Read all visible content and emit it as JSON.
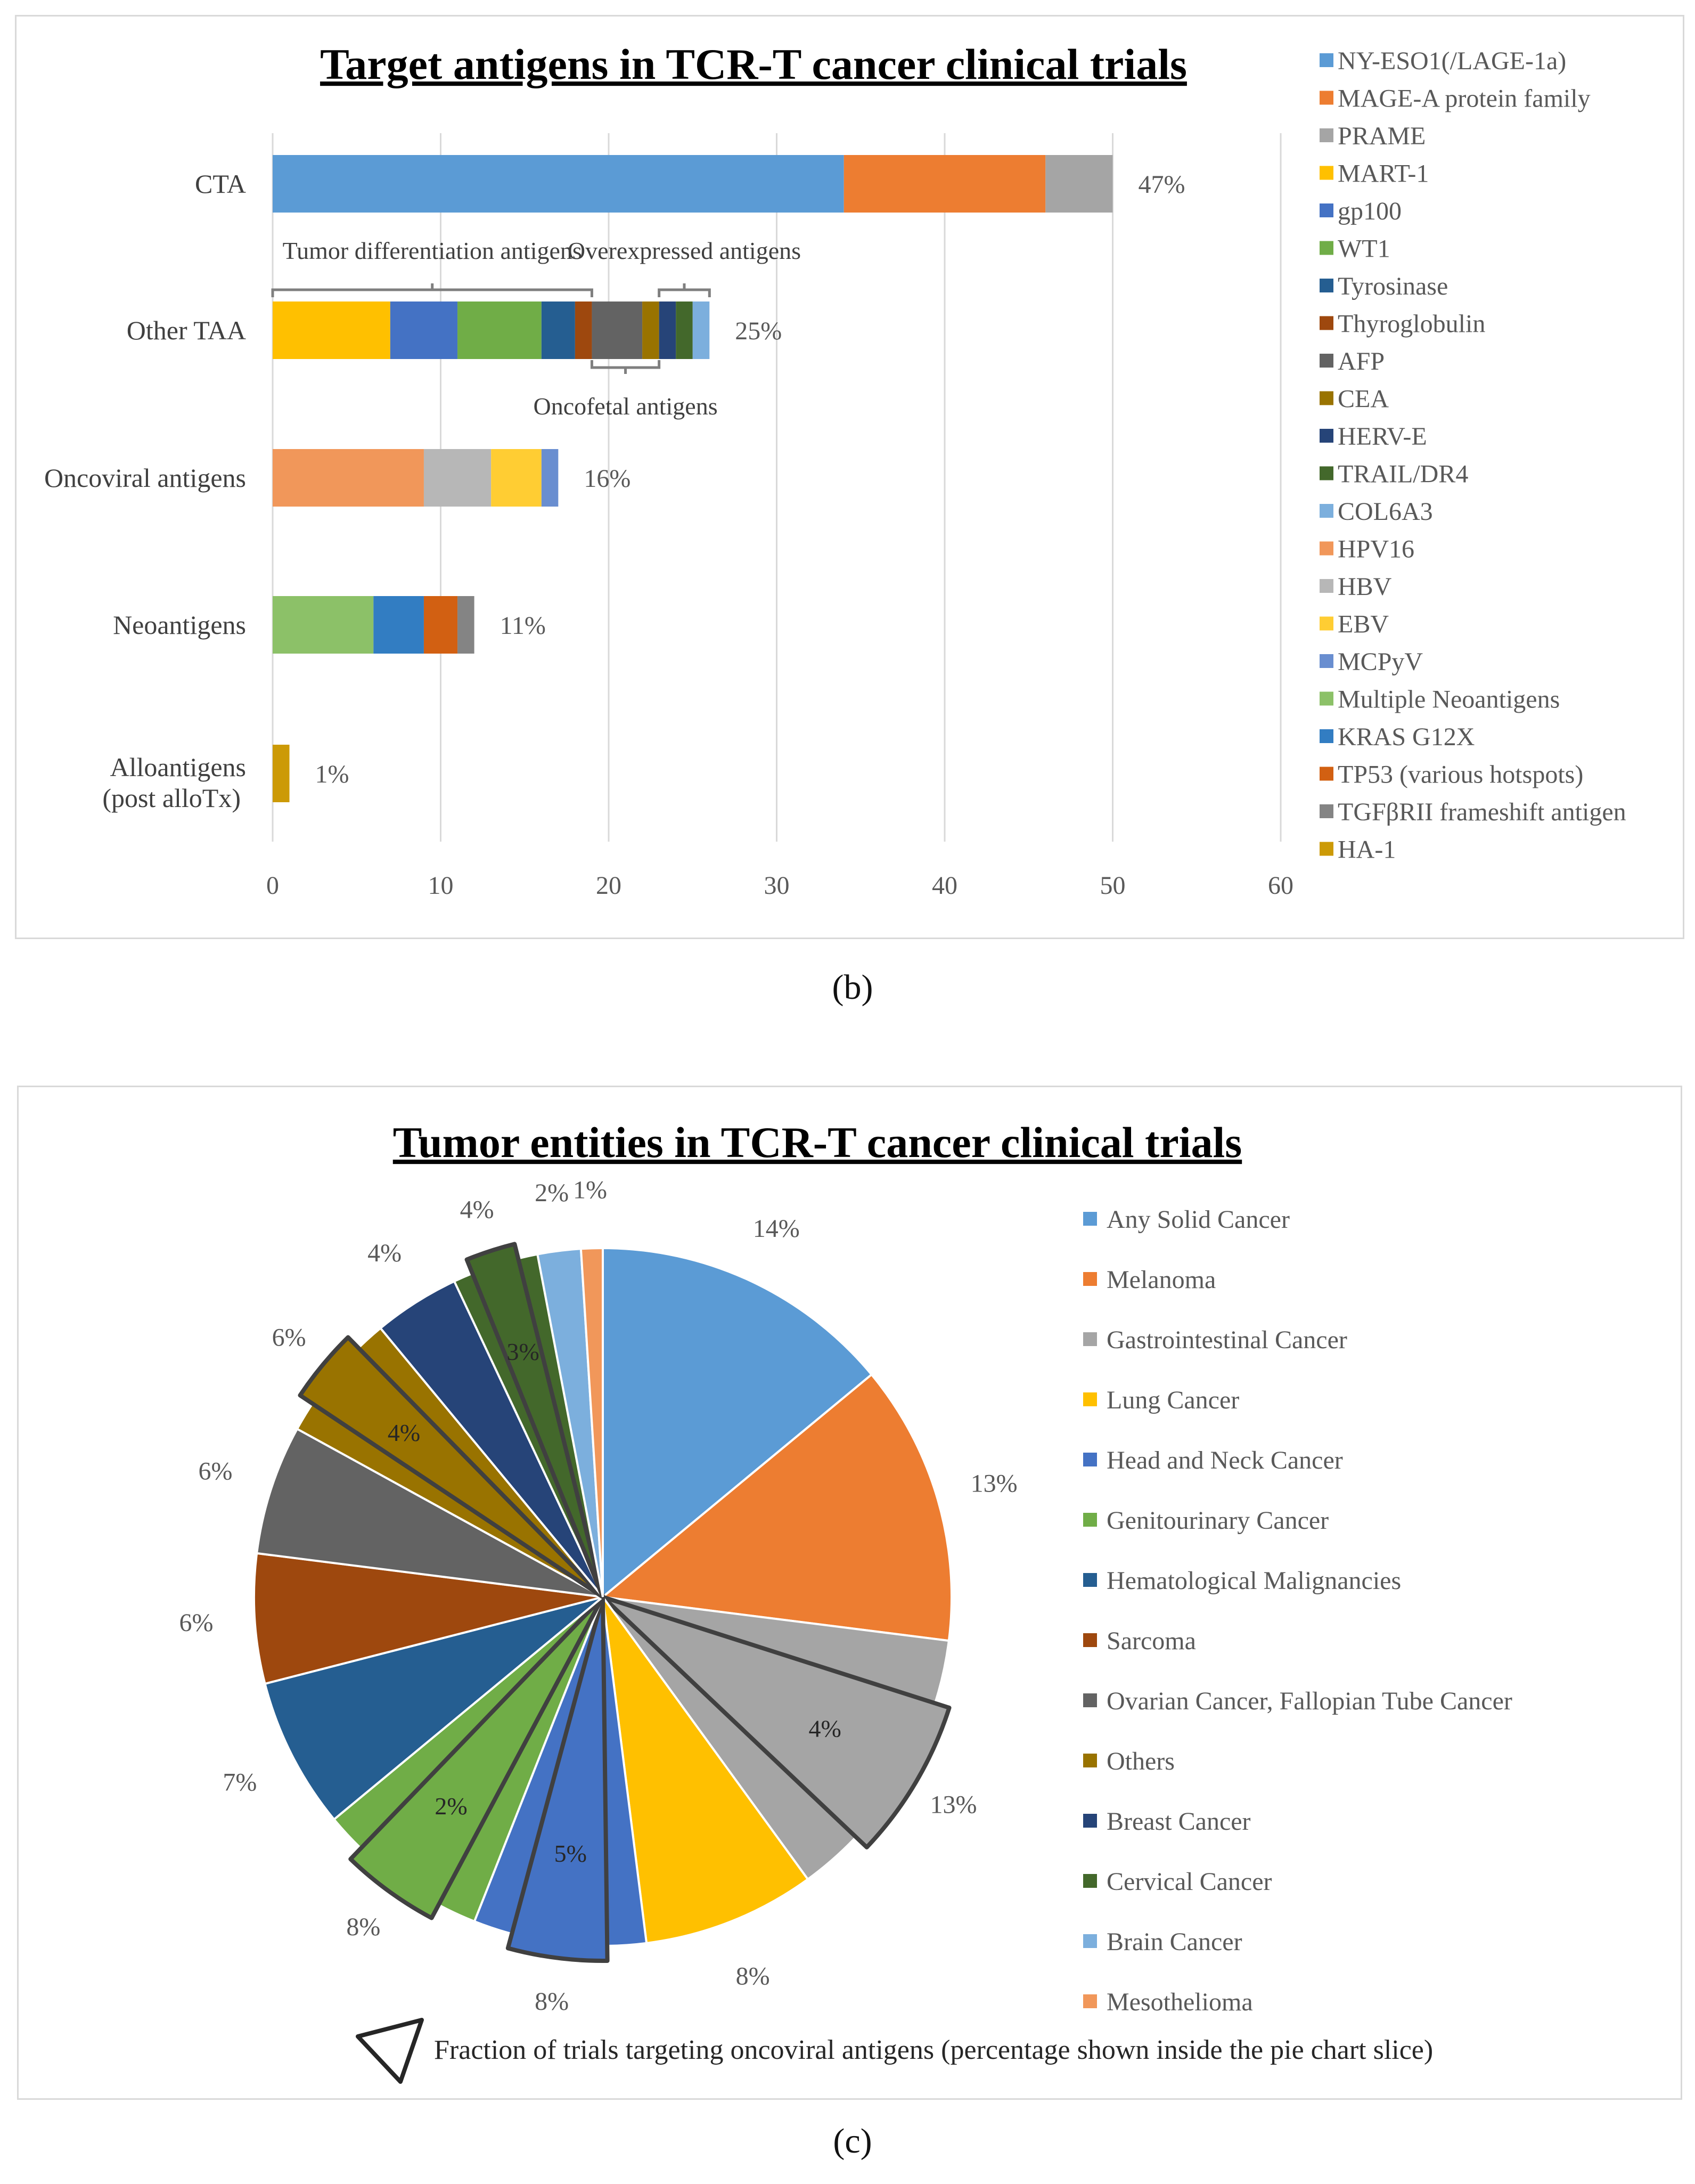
{
  "figure_b": {
    "caption": "(b)"
  },
  "figure_c": {
    "caption": "(c)"
  },
  "chart_data": [
    {
      "type": "bar",
      "orientation": "horizontal",
      "stacked": true,
      "title": "Target antigens in TCR-T cancer clinical trials",
      "xlim": [
        0,
        60
      ],
      "xticks": [
        0,
        10,
        20,
        30,
        40,
        50,
        60
      ],
      "grid": true,
      "legend_position": "right",
      "categories": [
        {
          "label": "CTA",
          "percent": "47%",
          "segments": [
            {
              "name": "NY-ESO1(/LAGE-1a)",
              "value": 34
            },
            {
              "name": "MAGE-A protein family",
              "value": 12
            },
            {
              "name": "PRAME",
              "value": 4
            }
          ]
        },
        {
          "label": "Other TAA",
          "percent": "25%",
          "segments": [
            {
              "name": "MART-1",
              "value": 7
            },
            {
              "name": "gp100",
              "value": 4
            },
            {
              "name": "WT1",
              "value": 5
            },
            {
              "name": "Tyrosinase",
              "value": 2
            },
            {
              "name": "Thyroglobulin",
              "value": 1
            },
            {
              "name": "AFP",
              "value": 3
            },
            {
              "name": "CEA",
              "value": 1
            },
            {
              "name": "HERV-E",
              "value": 1
            },
            {
              "name": "TRAIL/DR4",
              "value": 1
            },
            {
              "name": "COL6A3",
              "value": 1
            }
          ]
        },
        {
          "label": "Oncoviral antigens",
          "percent": "16%",
          "segments": [
            {
              "name": "HPV16",
              "value": 9
            },
            {
              "name": "HBV",
              "value": 4
            },
            {
              "name": "EBV",
              "value": 3
            },
            {
              "name": "MCPyV",
              "value": 1
            }
          ]
        },
        {
          "label": "Neoantigens",
          "percent": "11%",
          "segments": [
            {
              "name": "Multiple Neoantigens",
              "value": 6
            },
            {
              "name": "KRAS G12X",
              "value": 3
            },
            {
              "name": "TP53 (various hotspots)",
              "value": 2
            },
            {
              "name": "TGFβRII frameshift antigen",
              "value": 1
            }
          ]
        },
        {
          "label": "Alloantigens",
          "sublabel": "(post alloTx)",
          "percent": "1%",
          "segments": [
            {
              "name": "HA-1",
              "value": 1
            }
          ]
        }
      ],
      "brackets": [
        {
          "label": "Tumor differentiation antigens",
          "from": 0,
          "to": 19,
          "side": "above"
        },
        {
          "label": "Overexpressed antigens",
          "from": 23,
          "to": 26,
          "side": "above"
        },
        {
          "label": "Oncofetal antigens",
          "from": 19,
          "to": 23,
          "side": "below"
        }
      ],
      "legend": [
        {
          "name": "NY-ESO1(/LAGE-1a)",
          "color": "#5b9bd5"
        },
        {
          "name": "MAGE-A protein family",
          "color": "#ed7d31"
        },
        {
          "name": "PRAME",
          "color": "#a5a5a5"
        },
        {
          "name": "MART-1",
          "color": "#ffc000"
        },
        {
          "name": "gp100",
          "color": "#4472c4"
        },
        {
          "name": "WT1",
          "color": "#70ad47"
        },
        {
          "name": "Tyrosinase",
          "color": "#255e91"
        },
        {
          "name": "Thyroglobulin",
          "color": "#9e480e"
        },
        {
          "name": "AFP",
          "color": "#636363"
        },
        {
          "name": "CEA",
          "color": "#997300"
        },
        {
          "name": "HERV-E",
          "color": "#264478"
        },
        {
          "name": "TRAIL/DR4",
          "color": "#43682b"
        },
        {
          "name": "COL6A3",
          "color": "#7cafdd"
        },
        {
          "name": "HPV16",
          "color": "#f1975a"
        },
        {
          "name": "HBV",
          "color": "#b7b7b7"
        },
        {
          "name": "EBV",
          "color": "#ffcd33"
        },
        {
          "name": "MCPyV",
          "color": "#698ed0"
        },
        {
          "name": "Multiple Neoantigens",
          "color": "#8cc168"
        },
        {
          "name": "KRAS G12X",
          "color": "#327dc2"
        },
        {
          "name": "TP53 (various hotspots)",
          "color": "#d26012"
        },
        {
          "name": "TGFβRII frameshift antigen",
          "color": "#848484"
        },
        {
          "name": "HA-1",
          "color": "#cc9a06"
        }
      ]
    },
    {
      "type": "pie",
      "title": "Tumor entities in TCR-T cancer clinical trials",
      "legend_position": "right",
      "slices": [
        {
          "name": "Any Solid Cancer",
          "percent": 14,
          "label": "14%",
          "color": "#5b9bd5"
        },
        {
          "name": "Melanoma",
          "percent": 13,
          "label": "13%",
          "color": "#ed7d31"
        },
        {
          "name": "Gastrointestinal Cancer",
          "percent": 13,
          "label": "13%",
          "color": "#a5a5a5",
          "oncoviral_label": "4%"
        },
        {
          "name": "Lung Cancer",
          "percent": 8,
          "label": "8%",
          "color": "#ffc000"
        },
        {
          "name": "Head and Neck Cancer",
          "percent": 8,
          "label": "8%",
          "color": "#4472c4",
          "oncoviral_label": "5%"
        },
        {
          "name": "Genitourinary Cancer",
          "percent": 8,
          "label": "8%",
          "color": "#70ad47",
          "oncoviral_label": "2%"
        },
        {
          "name": "Hematological Malignancies",
          "percent": 7,
          "label": "7%",
          "color": "#255e91"
        },
        {
          "name": "Sarcoma",
          "percent": 6,
          "label": "6%",
          "color": "#9e480e"
        },
        {
          "name": "Ovarian Cancer, Fallopian Tube Cancer",
          "percent": 6,
          "label": "6%",
          "color": "#636363"
        },
        {
          "name": "Others",
          "percent": 6,
          "label": "6%",
          "color": "#997300",
          "oncoviral_label": "4%"
        },
        {
          "name": "Breast Cancer",
          "percent": 4,
          "label": "4%",
          "color": "#264478"
        },
        {
          "name": "Cervical Cancer",
          "percent": 4,
          "label": "4%",
          "color": "#43682b",
          "oncoviral_label": "3%"
        },
        {
          "name": "Brain Cancer",
          "percent": 2,
          "label": "2%",
          "color": "#7cafdd"
        },
        {
          "name": "Mesothelioma",
          "percent": 1,
          "label": "1%",
          "color": "#f1975a"
        }
      ],
      "footnote": "Fraction of trials targeting oncoviral antigens (percentage shown inside the pie chart slice)"
    }
  ]
}
